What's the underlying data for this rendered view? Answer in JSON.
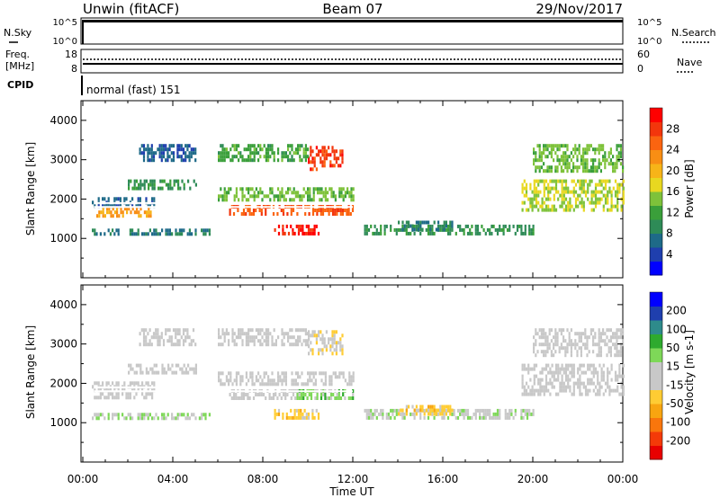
{
  "header": {
    "station": "Unwin (fitACF)",
    "beam": "Beam 07",
    "date": "29/Nov/2017"
  },
  "top_panels": {
    "nsky_label": "N.Sky",
    "nsky_ticks": [
      "10^5",
      "10^0"
    ],
    "nsearch_label": "N.Search",
    "freq_label_line1": "Freq.",
    "freq_label_line2": "[MHz]",
    "freq_ticks": [
      "18",
      "8"
    ],
    "nave_ticks": [
      "60",
      "0"
    ],
    "nave_label": "Nave",
    "cpid_label": "CPID",
    "cpid_text": "normal (fast) 151"
  },
  "colors": {
    "power": [
      "#0000ff",
      "#1f3fae",
      "#1e6a88",
      "#2e8b57",
      "#3a9f3a",
      "#7ec23a",
      "#e8d820",
      "#f7b418",
      "#f88e14",
      "#fb6410",
      "#f3360c",
      "#ff0000"
    ],
    "velocity": [
      "#e80000",
      "#f43a08",
      "#f9760c",
      "#f8a510",
      "#ffcc33",
      "#c8c8c8",
      "#c8c8c8",
      "#7ed858",
      "#2eaa2e",
      "#2e8b8b",
      "#1f3fae",
      "#0000ff"
    ]
  },
  "chart_data": [
    {
      "type": "heatmap",
      "name": "power",
      "ylabel": "Slant Range [km]",
      "ylim": [
        0,
        4500
      ],
      "xlim": [
        0,
        24
      ],
      "yticks": [
        1000,
        2000,
        3000,
        4000
      ],
      "colorbar_label": "Power [dB]",
      "colorbar_ticks": [
        "28",
        "24",
        "20",
        "16",
        "12",
        "8",
        "4"
      ],
      "colorbar_range": [
        0,
        32
      ],
      "regions": [
        {
          "t0": 0.4,
          "t1": 3.2,
          "r0": 1850,
          "r1": 2050,
          "v": 6
        },
        {
          "t0": 0.6,
          "t1": 3.0,
          "r0": 1600,
          "r1": 1800,
          "v": 22
        },
        {
          "t0": 0.4,
          "t1": 5.6,
          "r0": 1100,
          "r1": 1250,
          "v": 8
        },
        {
          "t0": 2.0,
          "t1": 5.0,
          "r0": 2300,
          "r1": 2500,
          "v": 10
        },
        {
          "t0": 2.5,
          "t1": 5.0,
          "r0": 3000,
          "r1": 3400,
          "v": 6
        },
        {
          "t0": 6.0,
          "t1": 12.0,
          "r0": 2000,
          "r1": 2300,
          "v": 14
        },
        {
          "t0": 6.5,
          "t1": 12.0,
          "r0": 1600,
          "r1": 1850,
          "v": 26
        },
        {
          "t0": 8.5,
          "t1": 10.5,
          "r0": 1150,
          "r1": 1350,
          "v": 30
        },
        {
          "t0": 10.0,
          "t1": 11.5,
          "r0": 2800,
          "r1": 3350,
          "v": 28
        },
        {
          "t0": 6.0,
          "t1": 10.0,
          "r0": 3000,
          "r1": 3400,
          "v": 12
        },
        {
          "t0": 12.5,
          "t1": 20.0,
          "r0": 1150,
          "r1": 1350,
          "v": 10
        },
        {
          "t0": 14.0,
          "t1": 16.5,
          "r0": 1200,
          "r1": 1450,
          "v": 8
        },
        {
          "t0": 19.5,
          "t1": 24.0,
          "r0": 1700,
          "r1": 2500,
          "v": 16
        },
        {
          "t0": 20.0,
          "t1": 24.0,
          "r0": 2700,
          "r1": 3400,
          "v": 14
        }
      ]
    },
    {
      "type": "heatmap",
      "name": "velocity",
      "ylabel": "Slant Range [km]",
      "xlabel": "Time UT",
      "ylim": [
        0,
        4500
      ],
      "xlim": [
        0,
        24
      ],
      "yticks": [
        1000,
        2000,
        3000,
        4000
      ],
      "xticks": [
        "00:00",
        "04:00",
        "08:00",
        "12:00",
        "16:00",
        "20:00",
        "00:00"
      ],
      "colorbar_label": "Velocity [m s-1]",
      "colorbar_ticks": [
        "200",
        "100",
        "50",
        "15",
        "-15",
        "-50",
        "-100",
        "-200"
      ],
      "colorbar_range": [
        -250,
        250
      ],
      "regions": [
        {
          "t0": 0.4,
          "t1": 3.2,
          "r0": 1600,
          "r1": 2050,
          "v": 0
        },
        {
          "t0": 0.4,
          "t1": 5.6,
          "r0": 1100,
          "r1": 1250,
          "v": 40
        },
        {
          "t0": 2.0,
          "t1": 5.0,
          "r0": 2300,
          "r1": 2500,
          "v": 0
        },
        {
          "t0": 2.5,
          "t1": 5.0,
          "r0": 3000,
          "r1": 3400,
          "v": 0
        },
        {
          "t0": 6.0,
          "t1": 12.0,
          "r0": 2000,
          "r1": 2300,
          "v": 0
        },
        {
          "t0": 6.5,
          "t1": 9.5,
          "r0": 1600,
          "r1": 1850,
          "v": 0
        },
        {
          "t0": 9.5,
          "t1": 12.0,
          "r0": 1600,
          "r1": 1850,
          "v": 60
        },
        {
          "t0": 8.5,
          "t1": 10.5,
          "r0": 1150,
          "r1": 1350,
          "v": -60
        },
        {
          "t0": 10.0,
          "t1": 11.5,
          "r0": 2800,
          "r1": 3350,
          "v": -30
        },
        {
          "t0": 6.0,
          "t1": 10.0,
          "r0": 3000,
          "r1": 3400,
          "v": 0
        },
        {
          "t0": 12.5,
          "t1": 20.0,
          "r0": 1150,
          "r1": 1350,
          "v": 30
        },
        {
          "t0": 14.0,
          "t1": 16.5,
          "r0": 1200,
          "r1": 1450,
          "v": -60
        },
        {
          "t0": 19.5,
          "t1": 24.0,
          "r0": 1700,
          "r1": 2500,
          "v": 0
        },
        {
          "t0": 20.0,
          "t1": 24.0,
          "r0": 2700,
          "r1": 3400,
          "v": 0
        }
      ]
    }
  ]
}
